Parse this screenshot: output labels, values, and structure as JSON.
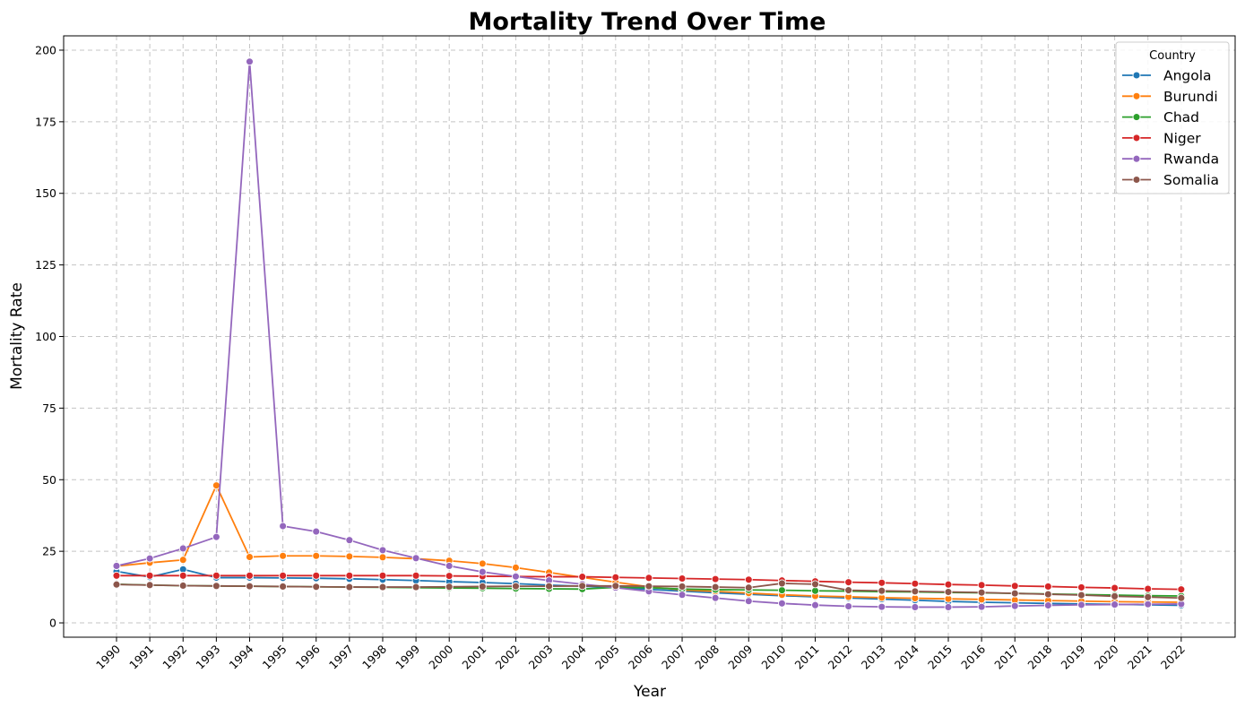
{
  "chart_data": {
    "type": "line",
    "title": "Mortality Trend Over Time",
    "xlabel": "Year",
    "ylabel": "Mortality Rate",
    "x": [
      1990,
      1991,
      1992,
      1993,
      1994,
      1995,
      1996,
      1997,
      1998,
      1999,
      2000,
      2001,
      2002,
      2003,
      2004,
      2005,
      2006,
      2007,
      2008,
      2009,
      2010,
      2011,
      2012,
      2013,
      2014,
      2015,
      2016,
      2017,
      2018,
      2019,
      2020,
      2021,
      2022
    ],
    "ylim": [
      -5,
      205
    ],
    "yticks": [
      0,
      25,
      50,
      75,
      100,
      125,
      150,
      175,
      200
    ],
    "grid": true,
    "legend": {
      "title": "Country",
      "position": "top-right"
    },
    "series": [
      {
        "name": "Angola",
        "color": "#1f77b4",
        "values": [
          18.0,
          16.0,
          18.7,
          15.8,
          15.8,
          15.7,
          15.6,
          15.4,
          15.1,
          14.8,
          14.4,
          14.1,
          13.7,
          13.2,
          12.8,
          12.3,
          11.7,
          11.1,
          10.5,
          10.0,
          9.5,
          9.1,
          8.7,
          8.3,
          7.9,
          7.5,
          7.2,
          7.0,
          6.8,
          6.6,
          6.5,
          6.3,
          6.1
        ]
      },
      {
        "name": "Burundi",
        "color": "#ff7f0e",
        "values": [
          19.8,
          21.0,
          22.0,
          48.0,
          23.0,
          23.4,
          23.4,
          23.2,
          22.9,
          22.4,
          21.7,
          20.7,
          19.3,
          17.6,
          15.9,
          14.2,
          12.6,
          11.5,
          11.0,
          10.4,
          9.8,
          9.4,
          9.1,
          8.8,
          8.6,
          8.4,
          8.2,
          8.0,
          7.8,
          7.6,
          7.4,
          7.3,
          7.2
        ]
      },
      {
        "name": "Chad",
        "color": "#2ca02c",
        "values": [
          13.5,
          13.2,
          13.0,
          12.9,
          12.8,
          12.7,
          12.6,
          12.5,
          12.4,
          12.3,
          12.2,
          12.1,
          12.0,
          11.9,
          11.8,
          12.4,
          12.3,
          11.8,
          11.6,
          11.5,
          11.4,
          11.2,
          11.1,
          10.9,
          10.8,
          10.6,
          10.5,
          10.3,
          10.1,
          9.9,
          9.7,
          9.5,
          9.4
        ]
      },
      {
        "name": "Niger",
        "color": "#d62728",
        "values": [
          16.5,
          16.5,
          16.5,
          16.5,
          16.5,
          16.5,
          16.5,
          16.5,
          16.5,
          16.5,
          16.4,
          16.3,
          16.2,
          16.1,
          16.1,
          15.9,
          15.7,
          15.5,
          15.3,
          15.1,
          14.8,
          14.5,
          14.2,
          14.0,
          13.7,
          13.4,
          13.2,
          12.9,
          12.7,
          12.4,
          12.2,
          11.9,
          11.7
        ]
      },
      {
        "name": "Rwanda",
        "color": "#9467bd",
        "values": [
          19.9,
          22.5,
          26.0,
          30.0,
          196.0,
          33.8,
          31.9,
          28.9,
          25.4,
          22.6,
          19.9,
          17.8,
          16.2,
          14.8,
          13.5,
          12.3,
          11.0,
          9.8,
          8.7,
          7.6,
          6.8,
          6.2,
          5.8,
          5.6,
          5.5,
          5.5,
          5.6,
          5.9,
          6.1,
          6.3,
          6.4,
          6.5,
          6.6
        ]
      },
      {
        "name": "Somalia",
        "color": "#8c564b",
        "values": [
          13.4,
          13.2,
          13.0,
          12.9,
          12.8,
          12.7,
          12.6,
          12.5,
          12.5,
          12.5,
          12.6,
          12.7,
          12.8,
          12.8,
          12.9,
          12.9,
          12.8,
          12.7,
          12.5,
          12.3,
          13.8,
          13.5,
          11.4,
          11.2,
          11.0,
          10.8,
          10.6,
          10.3,
          10.0,
          9.7,
          9.3,
          9.0,
          8.7
        ]
      }
    ]
  }
}
